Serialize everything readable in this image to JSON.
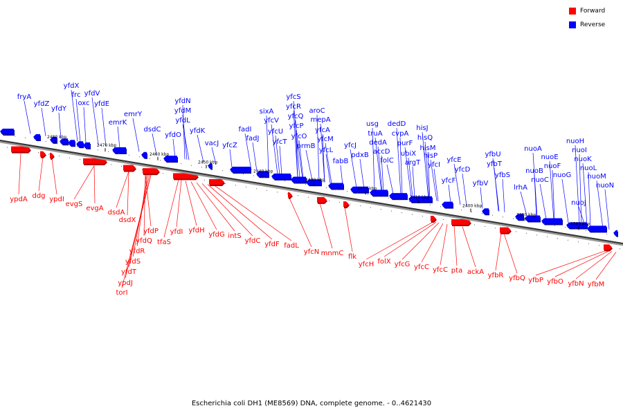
{
  "legend": {
    "forward_label": "Forward",
    "reverse_label": "Reverse",
    "forward_color": "#ff0000",
    "reverse_color": "#0000ff"
  },
  "caption": "Escherichia coli DH1 (ME8569) DNA, complete genome. - 0..4621430",
  "ticks": [
    "2480 kbp",
    "2470 kbp",
    "2460 kbp",
    "2450 kbp",
    "2440 kbp",
    "2430 kbp",
    "2420 kbp",
    "2410 kbp",
    "2400 kbp",
    "2390 kbp",
    "2380 kbp"
  ],
  "reverse_genes": [
    "fryA",
    "yfdZ",
    "yfdY",
    "yfdX",
    "frc",
    "oxc",
    "yfdV",
    "yfdE",
    "emrK",
    "emrY",
    "dsdC",
    "yfdO",
    "yfdL",
    "yfdM",
    "yfdN",
    "yfdK",
    "vacJ",
    "yfcZ",
    "fadI",
    "fadJ",
    "sixA",
    "yfcV",
    "yfcU",
    "yfcT",
    "yfcS",
    "yfcR",
    "yfcQ",
    "yfcP",
    "yfcO",
    "aroC",
    "prmB",
    "mepA",
    "yfcA",
    "yfcM",
    "yfcL",
    "fabB",
    "yfcJ",
    "pdxB",
    "usg",
    "truA",
    "dedA",
    "accD",
    "folC",
    "dedD",
    "cvpA",
    "purF",
    "ubiX",
    "argT",
    "hisJ",
    "hisQ",
    "hisM",
    "hisP",
    "yfcI",
    "yfcF",
    "yfcE",
    "yfcD",
    "yfbV",
    "yfbU",
    "yfbT",
    "yfbS",
    "lrhA",
    "nuoA",
    "nuoB",
    "nuoC",
    "nuoE",
    "nuoF",
    "nuoG",
    "nuoH",
    "nuoI",
    "nuoJ",
    "nuoK",
    "nuoL",
    "nuoM",
    "nuoN"
  ],
  "forward_genes": [
    "ypdA",
    "ddg",
    "ypdI",
    "evgS",
    "evgA",
    "dsdA",
    "dsdX",
    "yfdP",
    "yfdQ",
    "yfdR",
    "yfdS",
    "yfdT",
    "ypdJ",
    "torI",
    "tfaS",
    "yfdI",
    "yfdH",
    "yfdG",
    "intS",
    "yfdC",
    "yfdF",
    "fadL",
    "yfcN",
    "mnmC",
    "flk",
    "yfcH",
    "folX",
    "yfcG",
    "yfcC",
    "yfcC",
    "pta",
    "ackA",
    "yfbR",
    "yfbQ",
    "yfbP",
    "yfbO",
    "yfbN",
    "yfbM"
  ]
}
